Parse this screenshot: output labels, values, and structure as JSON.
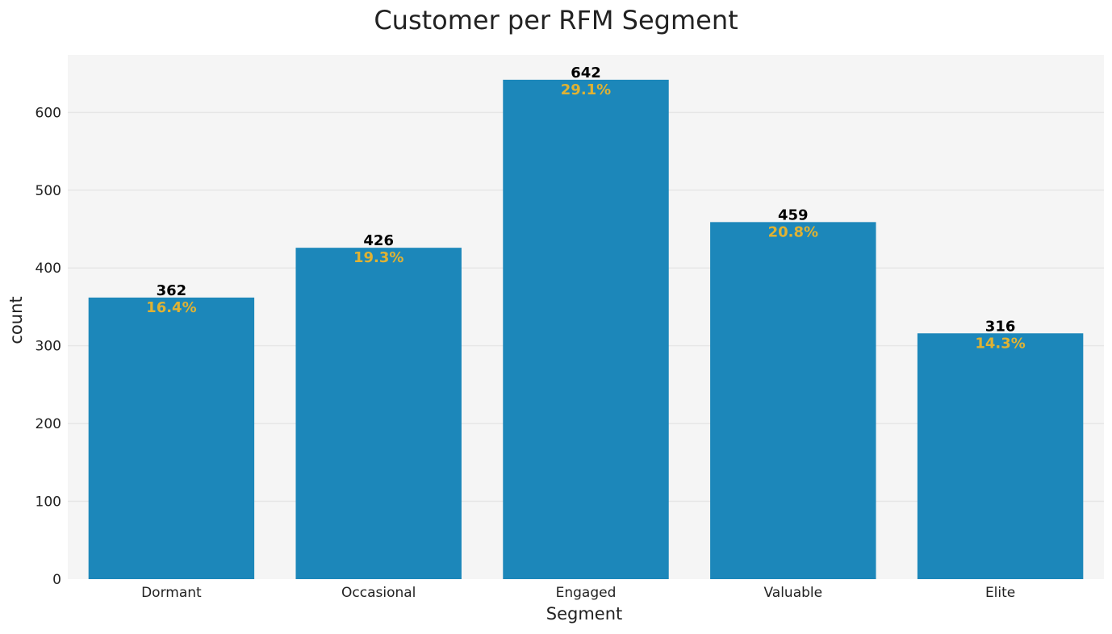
{
  "chart_data": {
    "type": "bar",
    "title": "Customer per RFM Segment",
    "xlabel": "Segment",
    "ylabel": "count",
    "categories": [
      "Dormant",
      "Occasional",
      "Engaged",
      "Valuable",
      "Elite"
    ],
    "values": [
      362,
      426,
      642,
      459,
      316
    ],
    "percent_labels": [
      "16.4%",
      "19.3%",
      "29.1%",
      "20.8%",
      "14.3%"
    ],
    "value_labels": [
      "362",
      "426",
      "642",
      "459",
      "316"
    ],
    "yticks": [
      0,
      100,
      200,
      300,
      400,
      500,
      600
    ],
    "ytick_labels": [
      "0",
      "100",
      "200",
      "300",
      "400",
      "500",
      "600"
    ],
    "ylim": [
      0,
      674
    ],
    "grid": "horizontal",
    "colors": {
      "bar": "#1c87ba",
      "plot_bg": "#f5f5f5",
      "grid": "#e6e6e6",
      "value_label": "#000000",
      "percent_label": "#e0b233",
      "text": "#222222"
    }
  }
}
